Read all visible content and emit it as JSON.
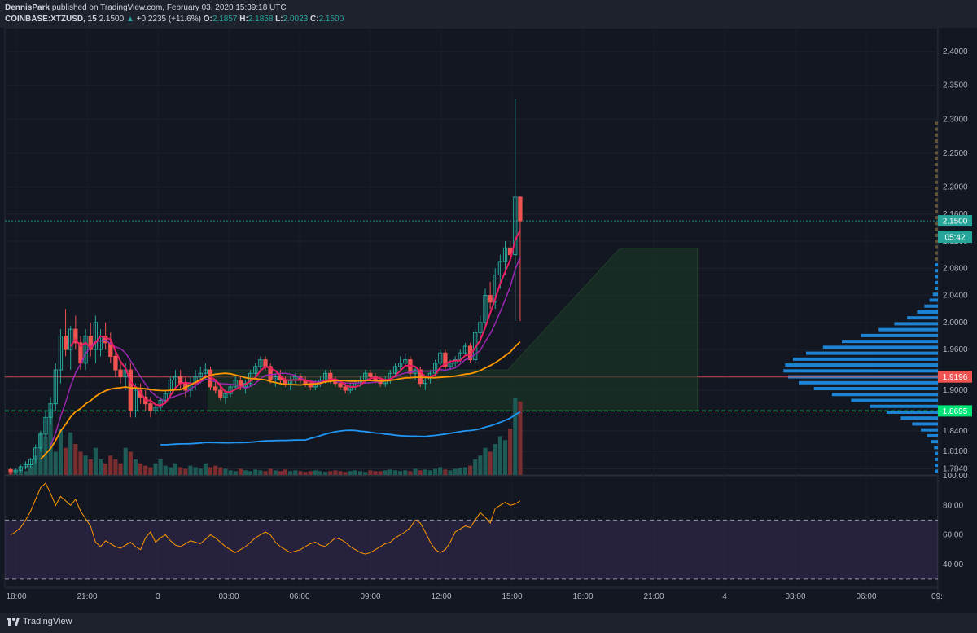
{
  "header": {
    "author": "DennisPark",
    "published_text": "published on TradingView.com, February 03, 2020 15:39:18 UTC",
    "symbol": "COINBASE:XTZUSD, 15",
    "last": "2.1500",
    "change": "+0.2235 (+11.6%)",
    "o_label": "O:",
    "o_value": "2.1857",
    "h_label": "H:",
    "h_value": "2.1858",
    "l_label": "L:",
    "l_value": "2.0023",
    "c_label": "C:",
    "c_value": "2.1500"
  },
  "footer": {
    "brand": "TradingView"
  },
  "colors": {
    "bg": "#131722",
    "up": "#26a69a",
    "down": "#ef5350",
    "grid": "#1e222d",
    "wma_purple": "#9c27b0",
    "supertrend_pink": "#e91e63",
    "ema_orange": "#ff9800",
    "sma_blue": "#2196f3",
    "rsi_band": "#7e57c2",
    "volume_profile": "#2196f3",
    "support_green": "#00e676"
  },
  "chart_data": [
    {
      "type": "candlestick",
      "x_axis_labels": [
        "18:00",
        "21:00",
        "3",
        "03:00",
        "06:00",
        "09:00",
        "12:00",
        "15:00",
        "18:00",
        "21:00",
        "4",
        "03:00",
        "06:00",
        "09:"
      ],
      "y_axis_labels": [
        "2.4000",
        "2.3500",
        "2.3000",
        "2.2500",
        "2.2000",
        "2.1600",
        "2.1200",
        "2.0800",
        "2.0400",
        "2.0000",
        "1.9600",
        "1.9200",
        "1.9000",
        "1.8400",
        "1.8100",
        "1.7840"
      ],
      "ylim": [
        1.775,
        2.435
      ],
      "price_tags": [
        {
          "value": 2.15,
          "label": "2.1500",
          "color": "#26a69a"
        },
        {
          "value": 2.126,
          "label": "05:42",
          "color": "#26a69a"
        },
        {
          "value": 1.9196,
          "label": "1.9196",
          "color": "#ef5350"
        },
        {
          "value": 1.8695,
          "label": "1.8695",
          "color": "#00e676"
        }
      ],
      "horizontal_lines": [
        {
          "value": 2.15,
          "color": "#26a69a",
          "style": "dotted"
        },
        {
          "value": 1.9196,
          "color": "#ef5350",
          "style": "solid"
        },
        {
          "value": 1.8695,
          "color": "#00e676",
          "style": "dashed"
        }
      ],
      "candles_ohlc": [
        [
          1.783,
          1.786,
          1.776,
          1.78
        ],
        [
          1.78,
          1.785,
          1.777,
          1.782
        ],
        [
          1.782,
          1.79,
          1.779,
          1.787
        ],
        [
          1.787,
          1.795,
          1.783,
          1.79
        ],
        [
          1.79,
          1.8,
          1.785,
          1.798
        ],
        [
          1.798,
          1.82,
          1.792,
          1.815
        ],
        [
          1.815,
          1.84,
          1.81,
          1.835
        ],
        [
          1.835,
          1.87,
          1.83,
          1.86
        ],
        [
          1.86,
          1.89,
          1.85,
          1.88
        ],
        [
          1.88,
          1.94,
          1.87,
          1.93
        ],
        [
          1.93,
          1.99,
          1.91,
          1.98
        ],
        [
          1.98,
          2.02,
          1.95,
          1.96
        ],
        [
          1.96,
          1.995,
          1.93,
          1.99
        ],
        [
          1.99,
          2.01,
          1.96,
          1.97
        ],
        [
          1.97,
          1.98,
          1.93,
          1.94
        ],
        [
          1.94,
          1.99,
          1.93,
          1.98
        ],
        [
          1.98,
          2.0,
          1.95,
          1.96
        ],
        [
          1.96,
          2.01,
          1.94,
          2.0
        ],
        [
          1.96,
          1.99,
          1.95,
          1.98
        ],
        [
          1.98,
          2.0,
          1.96,
          1.97
        ],
        [
          1.97,
          1.985,
          1.94,
          1.95
        ],
        [
          1.95,
          1.96,
          1.92,
          1.93
        ],
        [
          1.93,
          1.94,
          1.91,
          1.92
        ],
        [
          1.92,
          1.94,
          1.9,
          1.93
        ],
        [
          1.93,
          1.94,
          1.86,
          1.87
        ],
        [
          1.87,
          1.91,
          1.86,
          1.9
        ],
        [
          1.9,
          1.91,
          1.88,
          1.89
        ],
        [
          1.89,
          1.9,
          1.87,
          1.88
        ],
        [
          1.88,
          1.89,
          1.86,
          1.87
        ],
        [
          1.87,
          1.88,
          1.865,
          1.875
        ],
        [
          1.875,
          1.89,
          1.87,
          1.885
        ],
        [
          1.885,
          1.9,
          1.88,
          1.895
        ],
        [
          1.895,
          1.92,
          1.89,
          1.915
        ],
        [
          1.915,
          1.93,
          1.9,
          1.92
        ],
        [
          1.92,
          1.93,
          1.9,
          1.91
        ],
        [
          1.91,
          1.92,
          1.89,
          1.9
        ],
        [
          1.9,
          1.92,
          1.89,
          1.91
        ],
        [
          1.91,
          1.93,
          1.9,
          1.92
        ],
        [
          1.92,
          1.935,
          1.91,
          1.925
        ],
        [
          1.925,
          1.94,
          1.915,
          1.93
        ],
        [
          1.93,
          1.935,
          1.9,
          1.905
        ],
        [
          1.905,
          1.915,
          1.895,
          1.9
        ],
        [
          1.9,
          1.91,
          1.885,
          1.89
        ],
        [
          1.89,
          1.9,
          1.88,
          1.895
        ],
        [
          1.895,
          1.91,
          1.89,
          1.905
        ],
        [
          1.905,
          1.92,
          1.9,
          1.915
        ],
        [
          1.915,
          1.92,
          1.9,
          1.905
        ],
        [
          1.905,
          1.915,
          1.895,
          1.91
        ],
        [
          1.91,
          1.93,
          1.905,
          1.925
        ],
        [
          1.925,
          1.94,
          1.92,
          1.935
        ],
        [
          1.935,
          1.95,
          1.93,
          1.945
        ],
        [
          1.945,
          1.95,
          1.93,
          1.935
        ],
        [
          1.935,
          1.94,
          1.91,
          1.915
        ],
        [
          1.915,
          1.925,
          1.905,
          1.92
        ],
        [
          1.92,
          1.93,
          1.91,
          1.915
        ],
        [
          1.915,
          1.92,
          1.905,
          1.91
        ],
        [
          1.91,
          1.92,
          1.9,
          1.915
        ],
        [
          1.915,
          1.925,
          1.91,
          1.92
        ],
        [
          1.92,
          1.925,
          1.91,
          1.915
        ],
        [
          1.915,
          1.92,
          1.905,
          1.91
        ],
        [
          1.91,
          1.915,
          1.9,
          1.905
        ],
        [
          1.905,
          1.915,
          1.9,
          1.91
        ],
        [
          1.91,
          1.92,
          1.905,
          1.915
        ],
        [
          1.915,
          1.93,
          1.91,
          1.925
        ],
        [
          1.925,
          1.93,
          1.91,
          1.915
        ],
        [
          1.915,
          1.92,
          1.905,
          1.91
        ],
        [
          1.91,
          1.915,
          1.9,
          1.905
        ],
        [
          1.905,
          1.91,
          1.895,
          1.9
        ],
        [
          1.9,
          1.91,
          1.895,
          1.905
        ],
        [
          1.905,
          1.915,
          1.9,
          1.91
        ],
        [
          1.91,
          1.92,
          1.905,
          1.915
        ],
        [
          1.915,
          1.93,
          1.91,
          1.925
        ],
        [
          1.925,
          1.93,
          1.915,
          1.92
        ],
        [
          1.92,
          1.925,
          1.91,
          1.915
        ],
        [
          1.915,
          1.92,
          1.905,
          1.91
        ],
        [
          1.91,
          1.92,
          1.905,
          1.915
        ],
        [
          1.915,
          1.93,
          1.91,
          1.925
        ],
        [
          1.925,
          1.94,
          1.92,
          1.935
        ],
        [
          1.935,
          1.95,
          1.93,
          1.94
        ],
        [
          1.94,
          1.955,
          1.935,
          1.945
        ],
        [
          1.945,
          1.95,
          1.92,
          1.925
        ],
        [
          1.925,
          1.935,
          1.915,
          1.93
        ],
        [
          1.93,
          1.935,
          1.905,
          1.91
        ],
        [
          1.91,
          1.92,
          1.9,
          1.915
        ],
        [
          1.915,
          1.93,
          1.91,
          1.925
        ],
        [
          1.925,
          1.945,
          1.92,
          1.94
        ],
        [
          1.94,
          1.96,
          1.935,
          1.955
        ],
        [
          1.955,
          1.96,
          1.93,
          1.935
        ],
        [
          1.935,
          1.945,
          1.93,
          1.94
        ],
        [
          1.94,
          1.95,
          1.935,
          1.945
        ],
        [
          1.945,
          1.96,
          1.94,
          1.955
        ],
        [
          1.955,
          1.97,
          1.95,
          1.965
        ],
        [
          1.965,
          1.97,
          1.94,
          1.945
        ],
        [
          1.945,
          1.99,
          1.94,
          1.985
        ],
        [
          1.985,
          2.01,
          1.97,
          2.0
        ],
        [
          2.0,
          2.05,
          1.99,
          2.04
        ],
        [
          2.04,
          2.06,
          2.02,
          2.03
        ],
        [
          2.03,
          2.08,
          2.02,
          2.07
        ],
        [
          2.07,
          2.1,
          2.05,
          2.09
        ],
        [
          2.09,
          2.12,
          2.07,
          2.11
        ],
        [
          2.11,
          2.12,
          2.09,
          2.1
        ],
        [
          2.1,
          2.33,
          2.002,
          2.185
        ],
        [
          2.185,
          2.186,
          2.002,
          2.15
        ]
      ],
      "volume_relative": [
        0.05,
        0.04,
        0.06,
        0.05,
        0.12,
        0.25,
        0.55,
        0.5,
        0.85,
        0.3,
        0.6,
        0.35,
        0.55,
        0.4,
        0.3,
        0.25,
        0.2,
        0.35,
        0.2,
        0.15,
        0.25,
        0.2,
        0.15,
        0.35,
        0.3,
        0.2,
        0.15,
        0.12,
        0.1,
        0.15,
        0.2,
        0.12,
        0.1,
        0.15,
        0.1,
        0.08,
        0.12,
        0.1,
        0.08,
        0.15,
        0.1,
        0.12,
        0.1,
        0.08,
        0.06,
        0.05,
        0.08,
        0.06,
        0.05,
        0.07,
        0.06,
        0.05,
        0.08,
        0.06,
        0.05,
        0.07,
        0.05,
        0.06,
        0.05,
        0.04,
        0.05,
        0.06,
        0.05,
        0.04,
        0.05,
        0.06,
        0.05,
        0.04,
        0.05,
        0.06,
        0.05,
        0.04,
        0.06,
        0.05,
        0.05,
        0.06,
        0.07,
        0.06,
        0.05,
        0.06,
        0.05,
        0.08,
        0.06,
        0.07,
        0.06,
        0.08,
        0.1,
        0.07,
        0.06,
        0.08,
        0.09,
        0.1,
        0.12,
        0.2,
        0.25,
        0.35,
        0.3,
        0.4,
        0.5,
        0.45,
        0.6,
        1.0,
        0.95
      ]
    },
    {
      "type": "line",
      "name": "RSI",
      "y_axis_labels": [
        "100.00",
        "80.00",
        "60.00",
        "40.00"
      ],
      "ylim": [
        25,
        100
      ],
      "bands": [
        70,
        30
      ],
      "values": [
        60,
        62,
        65,
        70,
        76,
        84,
        92,
        95,
        88,
        80,
        86,
        83,
        80,
        84,
        76,
        71,
        66,
        55,
        52,
        56,
        54,
        52,
        51,
        53,
        55,
        52,
        50,
        58,
        62,
        55,
        58,
        60,
        56,
        53,
        52,
        54,
        56,
        55,
        54,
        57,
        60,
        58,
        55,
        52,
        50,
        48,
        50,
        52,
        55,
        58,
        60,
        62,
        60,
        55,
        52,
        50,
        48,
        49,
        50,
        52,
        54,
        55,
        53,
        52,
        55,
        58,
        57,
        55,
        52,
        50,
        48,
        47,
        48,
        50,
        52,
        54,
        55,
        58,
        60,
        62,
        65,
        70,
        68,
        62,
        55,
        50,
        48,
        50,
        55,
        62,
        64,
        66,
        65,
        70,
        75,
        72,
        68,
        78,
        80,
        82,
        80,
        81,
        83
      ]
    }
  ]
}
